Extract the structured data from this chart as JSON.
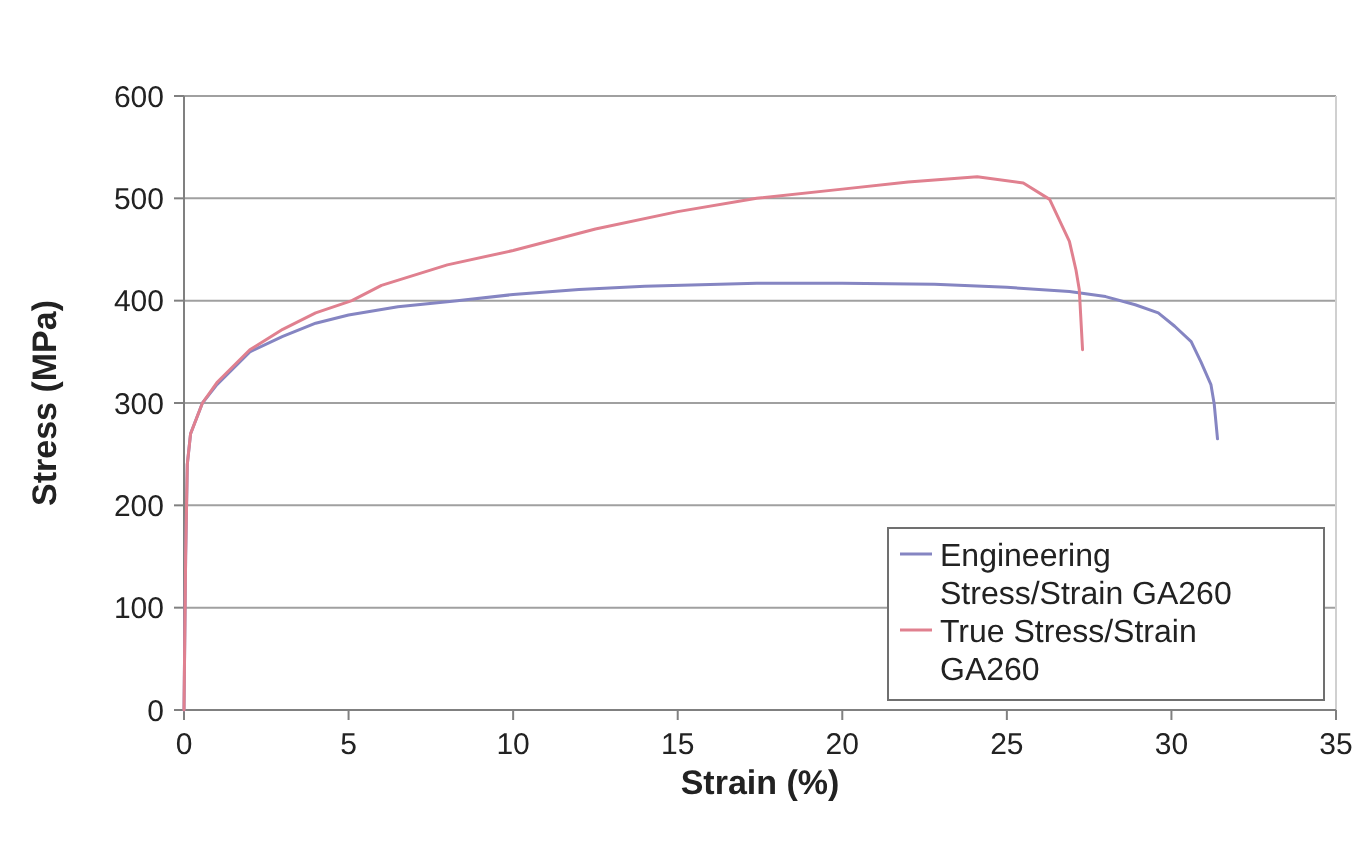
{
  "chart_data": {
    "type": "line",
    "xlabel": "Strain (%)",
    "ylabel": "Stress (MPa)",
    "xlim": [
      0,
      35
    ],
    "xticks": [
      0,
      5,
      10,
      15,
      20,
      25,
      30,
      35
    ],
    "ylim": [
      0,
      600
    ],
    "yticks": [
      0,
      100,
      200,
      300,
      400,
      500,
      600
    ],
    "grid": "y",
    "legend": "bottom right",
    "marker": "none",
    "line_style": "solid",
    "series": [
      {
        "name": "Engineering Stress/Strain GA260",
        "color": "#8585c2",
        "x": [
          0,
          0.05,
          0.1,
          0.2,
          0.56,
          1,
          2,
          3,
          4,
          5,
          6.5,
          8.3,
          10,
          12,
          14,
          17.4,
          20,
          22.8,
          25,
          26.9,
          28,
          28.9,
          29.6,
          30.1,
          30.6,
          30.9,
          31.2,
          31.3,
          31.4
        ],
        "values": [
          0,
          150,
          240,
          270,
          300,
          318,
          350,
          365,
          378,
          386,
          394,
          400,
          406,
          411,
          414,
          417,
          417,
          416,
          413,
          409,
          404,
          396,
          388,
          375,
          360,
          340,
          318,
          299,
          265
        ]
      },
      {
        "name": "True Stress/Strain GA260",
        "color": "#e0808f",
        "x": [
          0,
          0.05,
          0.1,
          0.2,
          0.56,
          1,
          2,
          3,
          4,
          5.1,
          6,
          8,
          10,
          12.5,
          15,
          17.4,
          20,
          22,
          24.1,
          25.5,
          26.3,
          26.9,
          27.1,
          27.2,
          27.3
        ],
        "values": [
          0,
          150,
          240,
          270,
          300,
          320,
          352,
          372,
          388,
          400,
          415,
          435,
          449,
          470,
          487,
          500,
          509,
          516,
          521,
          515,
          499,
          458,
          430,
          411,
          352
        ]
      }
    ]
  }
}
